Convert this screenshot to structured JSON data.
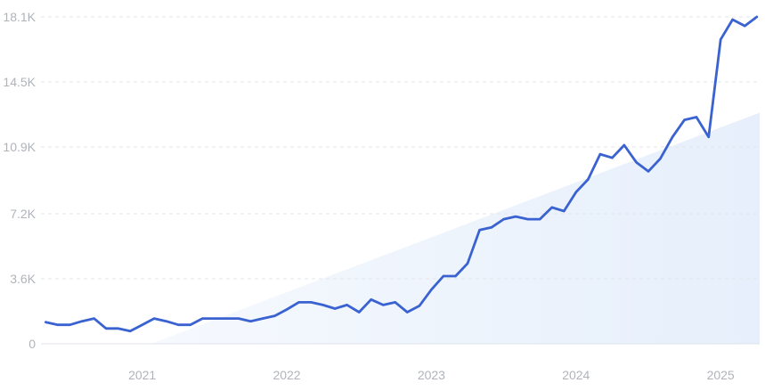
{
  "chart_data": {
    "type": "line",
    "title": "",
    "xlabel": "",
    "ylabel": "",
    "y_ticks": [
      "0",
      "3.6K",
      "7.2K",
      "10.9K",
      "14.5K",
      "18.1K"
    ],
    "y_tick_values": [
      0,
      3600,
      7200,
      10900,
      14500,
      18100
    ],
    "ylim": [
      0,
      18100
    ],
    "x_ticks": [
      "2021",
      "2022",
      "2023",
      "2024",
      "2025"
    ],
    "x_tick_positions": [
      2021.0,
      2022.0,
      2023.0,
      2024.0,
      2025.0
    ],
    "xlim": [
      2020.3,
      2025.27
    ],
    "grid": "horizontal-dashed",
    "series": [
      {
        "color": "#3a62d0",
        "x": [
          2020.333,
          2020.417,
          2020.5,
          2020.583,
          2020.667,
          2020.75,
          2020.833,
          2020.917,
          2021.0,
          2021.083,
          2021.167,
          2021.25,
          2021.333,
          2021.417,
          2021.5,
          2021.583,
          2021.667,
          2021.75,
          2021.833,
          2021.917,
          2022.0,
          2022.083,
          2022.167,
          2022.25,
          2022.333,
          2022.417,
          2022.5,
          2022.583,
          2022.667,
          2022.75,
          2022.833,
          2022.917,
          2023.0,
          2023.083,
          2023.167,
          2023.25,
          2023.333,
          2023.417,
          2023.5,
          2023.583,
          2023.667,
          2023.75,
          2023.833,
          2023.917,
          2024.0,
          2024.083,
          2024.167,
          2024.25,
          2024.333,
          2024.417,
          2024.5,
          2024.583,
          2024.667,
          2024.75,
          2024.833,
          2024.917,
          2025.0,
          2025.083,
          2025.167,
          2025.25
        ],
        "values": [
          1200,
          1050,
          1050,
          1250,
          1400,
          850,
          850,
          700,
          1050,
          1400,
          1250,
          1050,
          1050,
          1400,
          1400,
          1400,
          1400,
          1250,
          1400,
          1550,
          1900,
          2300,
          2300,
          2150,
          1950,
          2150,
          1750,
          2450,
          2150,
          2300,
          1750,
          2100,
          3000,
          3750,
          3750,
          4450,
          6300,
          6450,
          6900,
          7050,
          6900,
          6900,
          7550,
          7350,
          8400,
          9100,
          10500,
          10300,
          11000,
          10050,
          9550,
          10250,
          11450,
          12400,
          12550,
          11450,
          16850,
          17950,
          17600,
          18100
        ]
      }
    ],
    "trend": {
      "color": "#e9f1fc",
      "from": [
        2021.06,
        0
      ],
      "to": [
        2025.27,
        12800
      ]
    }
  }
}
